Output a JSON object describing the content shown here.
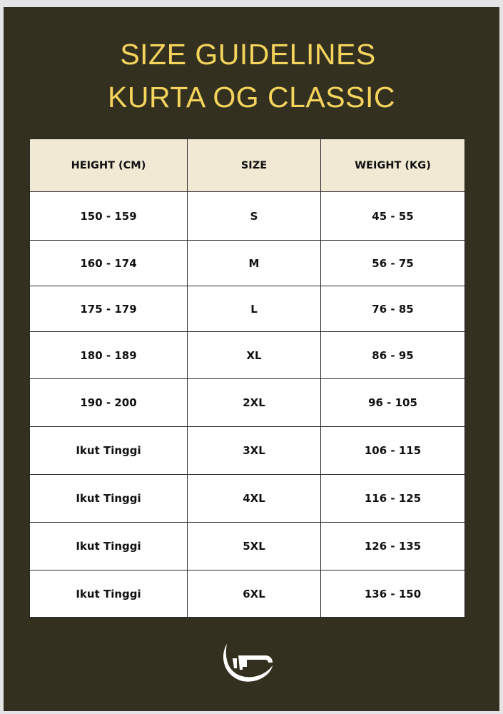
{
  "title_line1": "SIZE GUIDELINES",
  "title_line2": "KURTA OG CLASSIC",
  "colors": {
    "background": "#34301f",
    "title": "#f4d45c",
    "header_row": "#f2e9d5"
  },
  "table": {
    "headers": [
      "HEIGHT (CM)",
      "SIZE",
      "WEIGHT (KG)"
    ],
    "rows": [
      [
        "150 - 159",
        "S",
        "45 - 55"
      ],
      [
        "160 - 174",
        "M",
        "56 - 75"
      ],
      [
        "175 - 179",
        "L",
        "76 - 85"
      ],
      [
        "180 - 189",
        "XL",
        "86 - 95"
      ],
      [
        "190 - 200",
        "2XL",
        "96 - 105"
      ],
      [
        "Ikut Tinggi",
        "3XL",
        "106 - 115"
      ],
      [
        "Ikut Tinggi",
        "4XL",
        "116 - 125"
      ],
      [
        "Ikut Tinggi",
        "5XL",
        "126 - 135"
      ],
      [
        "Ikut Tinggi",
        "6XL",
        "136 - 150"
      ]
    ]
  },
  "logo": "brand-logo-crescent"
}
